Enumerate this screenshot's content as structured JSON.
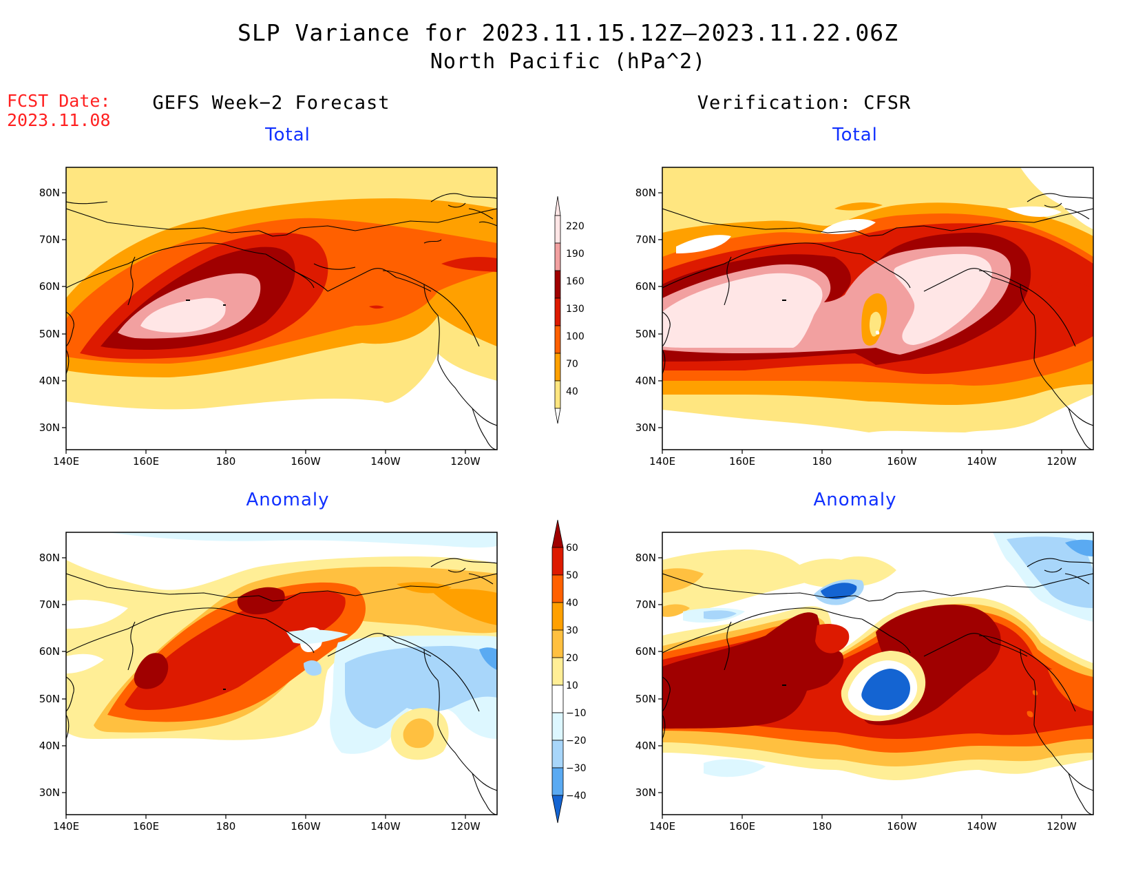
{
  "header": {
    "title": "SLP Variance for 2023.11.15.12Z–2023.11.22.06Z",
    "subtitle": "North Pacific (hPa^2)",
    "fcst_label": "FCST Date:",
    "fcst_date": "2023.11.08"
  },
  "columns": {
    "left": "GEFS Week−2 Forecast",
    "right": "Verification: CFSR"
  },
  "rows": {
    "top": "Total",
    "bottom": "Anomaly"
  },
  "axes": {
    "lon_labels": [
      "140E",
      "160E",
      "180",
      "160W",
      "140W",
      "120W"
    ],
    "lat_labels": [
      "80N",
      "70N",
      "60N",
      "50N",
      "40N",
      "30N"
    ]
  },
  "colorbars": {
    "total": {
      "levels": [
        "220",
        "190",
        "160",
        "130",
        "100",
        "70",
        "40"
      ],
      "colors": [
        "#ffe6e6",
        "#f2a0a0",
        "#a00000",
        "#dd1a00",
        "#ff6000",
        "#ffa000",
        "#ffe680"
      ]
    },
    "anomaly": {
      "levels": [
        "60",
        "50",
        "40",
        "30",
        "20",
        "10",
        "−10",
        "−20",
        "−30",
        "−40"
      ],
      "colors": [
        "#a00000",
        "#dd1a00",
        "#ff6000",
        "#ffa000",
        "#ffc040",
        "#ffee96",
        "#ffffff",
        "#ddf7ff",
        "#a8d6fa",
        "#5aaaf2",
        "#1464d2"
      ]
    }
  },
  "colors": {
    "title_fcst": "#ff2020",
    "panel_subtitle": "#1030ff"
  }
}
